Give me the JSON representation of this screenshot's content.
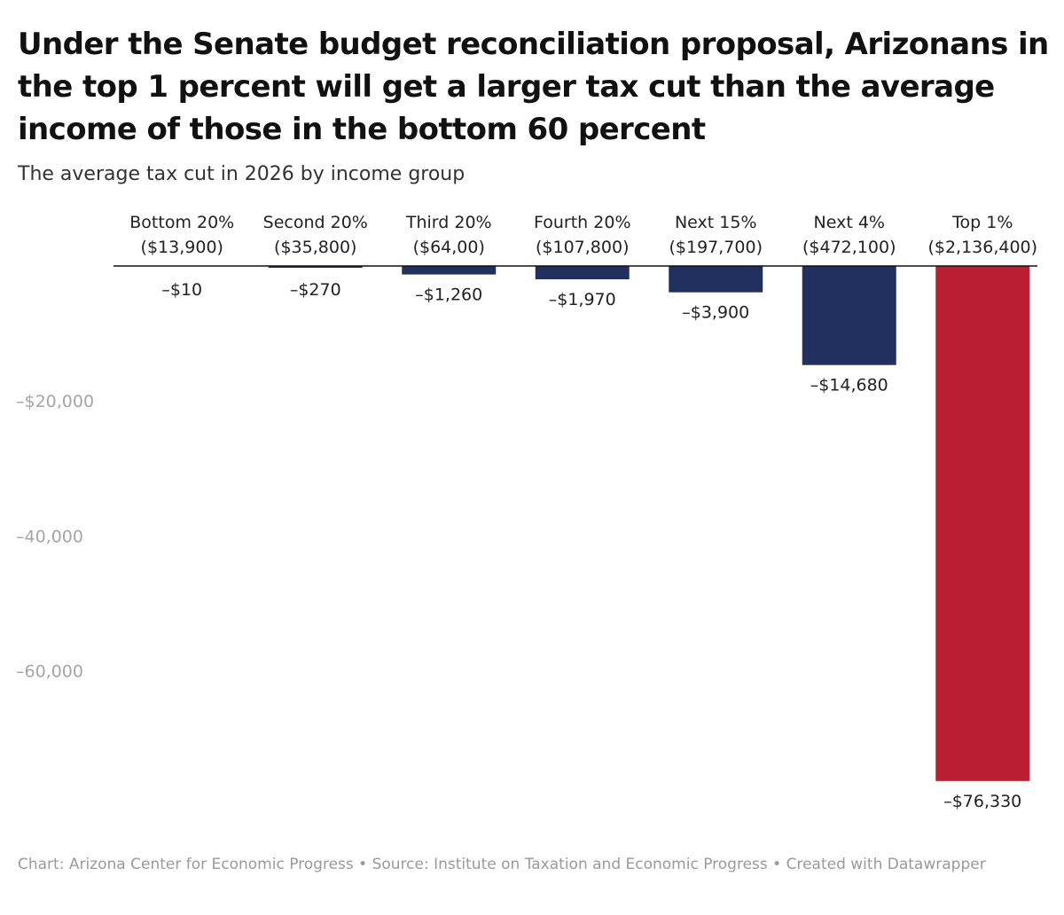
{
  "chart_data": {
    "type": "bar",
    "title": "Under the Senate budget reconciliation proposal, Arizonans in the top 1 percent will get a larger tax cut than the average income of those in the bottom 60 percent",
    "subtitle": "The average tax cut in 2026 by income group",
    "categories": [
      "Bottom 20%",
      "Second 20%",
      "Third 20%",
      "Fourth 20%",
      "Next 15%",
      "Next 4%",
      "Top 1%"
    ],
    "category_incomes": [
      "($13,900)",
      "($35,800)",
      "($64,00)",
      "($107,800)",
      "($197,700)",
      "($472,100)",
      "($2,136,400)"
    ],
    "values": [
      -10,
      -270,
      -1260,
      -1970,
      -3900,
      -14680,
      -76330
    ],
    "value_labels": [
      "–$10",
      "–$270",
      "–$1,260",
      "–$1,970",
      "–$3,900",
      "–$14,680",
      "–$76,330"
    ],
    "ylim": [
      -80000,
      0
    ],
    "yticks": [
      -20000,
      -40000,
      -60000
    ],
    "ytick_labels": [
      "–$20,000",
      "–40,000",
      "–60,000"
    ],
    "xlabel": "",
    "ylabel": "",
    "legend": "none",
    "colors": {
      "bar": "#22305f",
      "highlight": "#b91f31",
      "axis": "#111111",
      "tick_text": "#a6a6a6"
    },
    "highlight_index": 6
  },
  "footer": {
    "text": "Chart: Arizona Center for Economic Progress • Source: Institute on Taxation and Economic Progress • Created with Datawrapper"
  }
}
